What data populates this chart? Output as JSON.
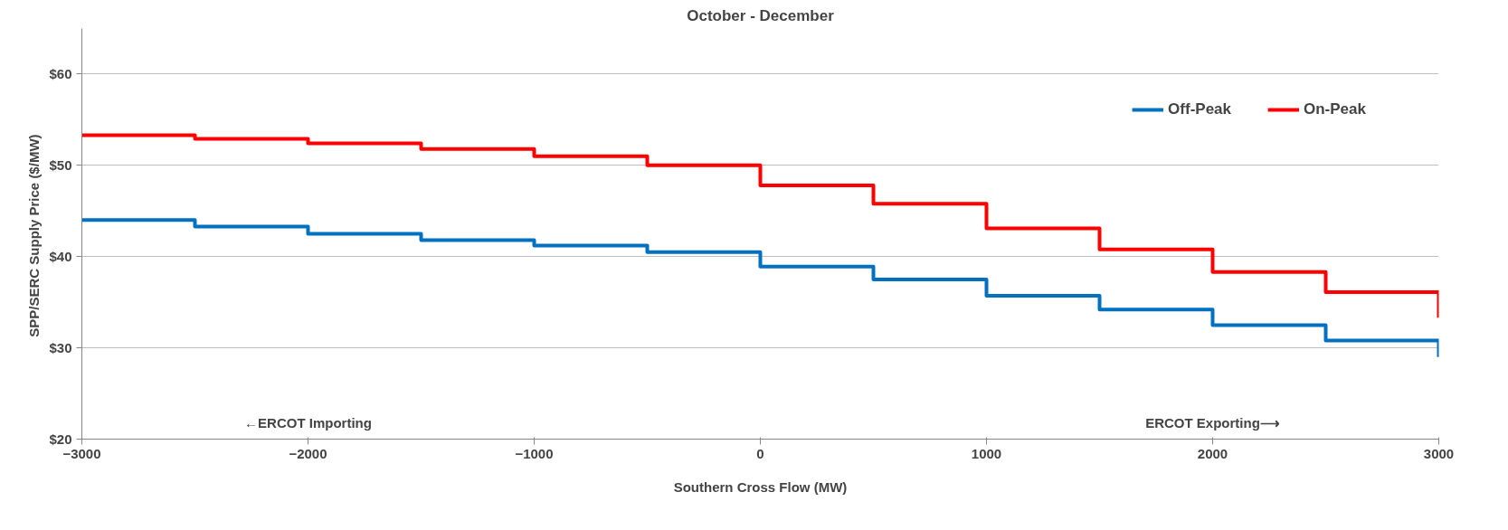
{
  "chart_data": {
    "type": "step",
    "title": "October - December",
    "xlabel": "Southern Cross Flow (MW)",
    "ylabel": "SPP/SERC Supply Price  ($/MW)",
    "x": [
      -3000,
      -2500,
      -2000,
      -1500,
      -1000,
      -500,
      0,
      500,
      1000,
      1500,
      2000,
      2500,
      3000
    ],
    "series": [
      {
        "name": "Off-Peak",
        "color": "#0070c0",
        "values": [
          44.0,
          43.3,
          42.5,
          41.8,
          41.2,
          40.5,
          38.9,
          37.5,
          35.7,
          34.2,
          32.5,
          30.8,
          29.0
        ]
      },
      {
        "name": "On-Peak",
        "color": "#ff0000",
        "values": [
          53.3,
          52.9,
          52.4,
          51.8,
          51.0,
          50.0,
          47.8,
          45.8,
          43.1,
          40.8,
          38.3,
          36.1,
          33.3
        ]
      }
    ],
    "xlim": [
      -3000,
      3000
    ],
    "xticks": [
      -3000,
      -2000,
      -1000,
      0,
      1000,
      2000,
      3000
    ],
    "ylim": [
      20,
      65
    ],
    "yticks": [
      {
        "value": 20,
        "label": "$20"
      },
      {
        "value": 30,
        "label": "$30"
      },
      {
        "value": 40,
        "label": "$40"
      },
      {
        "value": 50,
        "label": "$50"
      },
      {
        "value": 60,
        "label": "$60"
      }
    ],
    "grid": "y",
    "legend": "top right",
    "annotations": [
      "←ERCOT Importing",
      "ERCOT Exporting⟶"
    ]
  }
}
